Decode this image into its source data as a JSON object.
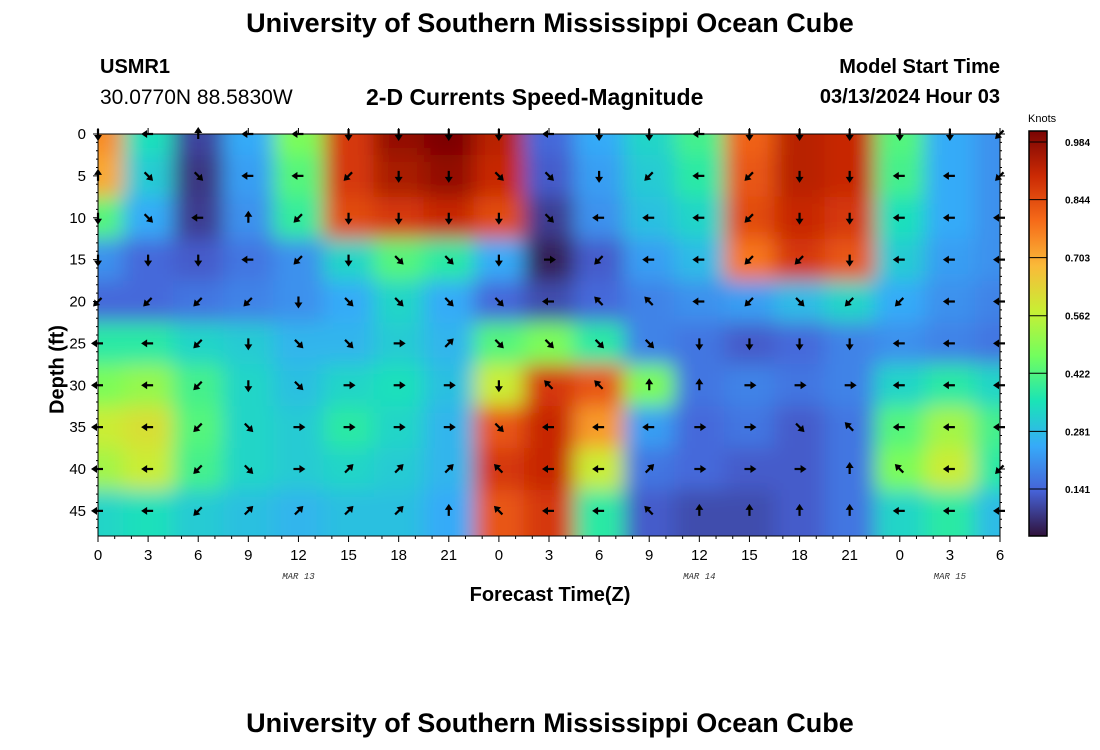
{
  "header": {
    "title_top": "University of Southern Mississippi Ocean Cube",
    "title_bottom": "University of Southern Mississippi Ocean Cube",
    "station_id": "USMR1",
    "station_coords": "30.0770N  88.5830W",
    "plot_title": "2-D Currents Speed-Magnitude",
    "model_label": "Model Start Time",
    "model_time": "03/13/2024 Hour 03"
  },
  "colors": {
    "arrow": "#000000",
    "colormap": [
      "#30123b",
      "#4662d7",
      "#36aaf9",
      "#1ae4b6",
      "#72fe5e",
      "#c8ef34",
      "#faba39",
      "#f66b19",
      "#cb2a04",
      "#7a0403"
    ]
  },
  "chart_data": {
    "type": "heatmap",
    "title": "2-D Currents Speed-Magnitude",
    "xlabel": "Forecast Time(Z)",
    "ylabel": "Depth (ft)",
    "x_tick_labels": [
      "0",
      "3",
      "6",
      "9",
      "12",
      "15",
      "18",
      "21",
      "0",
      "3",
      "6",
      "9",
      "12",
      "15",
      "18",
      "21",
      "0",
      "3",
      "6"
    ],
    "x_hours": [
      0,
      3,
      6,
      9,
      12,
      15,
      18,
      21,
      24,
      27,
      30,
      33,
      36,
      39,
      42,
      45,
      48,
      51,
      54
    ],
    "date_labels": [
      {
        "label": "MAR 13",
        "hour": 12
      },
      {
        "label": "MAR 14",
        "hour": 36
      },
      {
        "label": "MAR 15",
        "hour": 51
      }
    ],
    "y_ticks": [
      0,
      5,
      10,
      15,
      20,
      25,
      30,
      35,
      40,
      45
    ],
    "ylim": [
      0,
      48
    ],
    "xlim": [
      0,
      54
    ],
    "colorbar": {
      "unit": "Knots",
      "ticks": [
        "0.984",
        "0.844",
        "0.703",
        "0.562",
        "0.422",
        "0.281",
        "0.141"
      ],
      "tick_values": [
        0.984,
        0.844,
        0.703,
        0.562,
        0.422,
        0.281,
        0.141
      ],
      "range": [
        0,
        0.984
      ]
    },
    "depths": [
      0,
      5,
      10,
      15,
      20,
      25,
      30,
      35,
      40,
      45
    ],
    "speed_knots": [
      [
        0.72,
        0.32,
        0.07,
        0.22,
        0.45,
        0.85,
        0.95,
        0.98,
        0.9,
        0.12,
        0.22,
        0.3,
        0.38,
        0.78,
        0.9,
        0.88,
        0.4,
        0.22,
        0.18
      ],
      [
        0.68,
        0.28,
        0.05,
        0.2,
        0.4,
        0.85,
        0.92,
        0.95,
        0.88,
        0.1,
        0.2,
        0.28,
        0.35,
        0.8,
        0.9,
        0.88,
        0.38,
        0.22,
        0.18
      ],
      [
        0.4,
        0.22,
        0.06,
        0.18,
        0.36,
        0.82,
        0.85,
        0.88,
        0.82,
        0.06,
        0.18,
        0.26,
        0.3,
        0.82,
        0.88,
        0.85,
        0.32,
        0.22,
        0.18
      ],
      [
        0.18,
        0.12,
        0.1,
        0.14,
        0.18,
        0.3,
        0.4,
        0.35,
        0.22,
        0.02,
        0.1,
        0.2,
        0.25,
        0.75,
        0.85,
        0.8,
        0.28,
        0.2,
        0.18
      ],
      [
        0.12,
        0.12,
        0.14,
        0.16,
        0.18,
        0.22,
        0.3,
        0.22,
        0.12,
        0.08,
        0.12,
        0.16,
        0.18,
        0.2,
        0.25,
        0.3,
        0.22,
        0.18,
        0.16
      ],
      [
        0.35,
        0.35,
        0.3,
        0.28,
        0.24,
        0.24,
        0.28,
        0.24,
        0.4,
        0.45,
        0.35,
        0.16,
        0.14,
        0.1,
        0.12,
        0.16,
        0.18,
        0.16,
        0.14
      ],
      [
        0.45,
        0.48,
        0.38,
        0.3,
        0.26,
        0.3,
        0.32,
        0.26,
        0.55,
        0.85,
        0.8,
        0.45,
        0.14,
        0.16,
        0.14,
        0.16,
        0.3,
        0.35,
        0.3
      ],
      [
        0.55,
        0.58,
        0.4,
        0.3,
        0.28,
        0.35,
        0.3,
        0.24,
        0.8,
        0.88,
        0.7,
        0.2,
        0.12,
        0.14,
        0.1,
        0.14,
        0.4,
        0.5,
        0.38
      ],
      [
        0.5,
        0.55,
        0.38,
        0.3,
        0.28,
        0.3,
        0.28,
        0.24,
        0.85,
        0.88,
        0.55,
        0.14,
        0.12,
        0.1,
        0.1,
        0.14,
        0.45,
        0.55,
        0.35
      ],
      [
        0.3,
        0.32,
        0.28,
        0.26,
        0.24,
        0.26,
        0.26,
        0.22,
        0.8,
        0.85,
        0.35,
        0.1,
        0.08,
        0.08,
        0.1,
        0.14,
        0.3,
        0.35,
        0.25
      ]
    ],
    "arrow_direction_deg": [
      [
        270,
        180,
        90,
        180,
        180,
        270,
        270,
        270,
        270,
        180,
        270,
        270,
        180,
        270,
        270,
        270,
        270,
        270,
        225
      ],
      [
        90,
        315,
        315,
        180,
        180,
        225,
        270,
        270,
        315,
        315,
        270,
        225,
        180,
        225,
        270,
        270,
        180,
        180,
        225
      ],
      [
        270,
        315,
        180,
        90,
        225,
        270,
        270,
        270,
        270,
        315,
        180,
        180,
        180,
        225,
        270,
        270,
        180,
        180,
        180
      ],
      [
        270,
        270,
        270,
        180,
        225,
        270,
        315,
        315,
        270,
        0,
        225,
        180,
        180,
        225,
        225,
        270,
        180,
        180,
        180
      ],
      [
        225,
        225,
        225,
        225,
        270,
        315,
        315,
        315,
        315,
        180,
        135,
        135,
        180,
        225,
        315,
        225,
        225,
        180,
        180
      ],
      [
        180,
        180,
        225,
        270,
        315,
        315,
        0,
        45,
        315,
        315,
        315,
        315,
        270,
        270,
        270,
        270,
        180,
        180,
        180
      ],
      [
        180,
        180,
        225,
        270,
        315,
        0,
        0,
        0,
        270,
        135,
        135,
        90,
        90,
        0,
        0,
        0,
        180,
        180,
        180
      ],
      [
        180,
        180,
        225,
        315,
        0,
        0,
        0,
        0,
        315,
        180,
        180,
        180,
        0,
        0,
        315,
        135,
        180,
        180,
        180
      ],
      [
        180,
        180,
        225,
        315,
        0,
        45,
        45,
        45,
        135,
        180,
        180,
        45,
        0,
        0,
        0,
        90,
        135,
        180,
        225
      ],
      [
        180,
        180,
        225,
        45,
        45,
        45,
        45,
        90,
        135,
        180,
        180,
        135,
        90,
        90,
        90,
        90,
        180,
        180,
        180
      ]
    ]
  }
}
